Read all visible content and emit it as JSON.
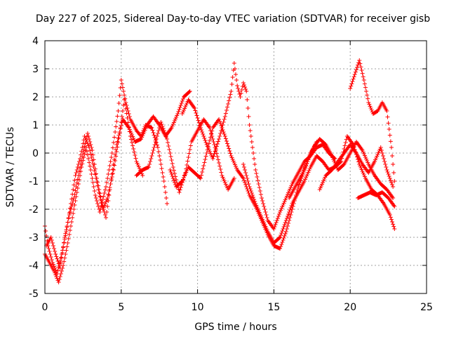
{
  "chart_data": {
    "type": "scatter",
    "title": "Day 227 of 2025, Sidereal Day-to-day VTEC variation (SDTVAR) for receiver gisb",
    "xlabel": "GPS time / hours",
    "ylabel": "SDTVAR / TECUs",
    "xlim": [
      0,
      25
    ],
    "ylim": [
      -5,
      4
    ],
    "xticks": [
      0,
      5,
      10,
      15,
      20,
      25
    ],
    "yticks": [
      -5,
      -4,
      -3,
      -2,
      -1,
      0,
      1,
      2,
      3,
      4
    ],
    "grid": true,
    "marker": "+",
    "color": "#ff0000",
    "series": [
      {
        "name": "s1",
        "x": [
          0.0,
          0.3,
          0.6,
          0.9,
          1.2,
          1.5,
          1.8,
          2.1,
          2.4,
          2.7,
          3.0,
          3.3,
          3.6,
          4.0,
          4.4,
          4.8,
          5.0,
          5.3,
          5.6,
          6.0,
          6.3,
          6.6,
          7.0,
          7.4,
          7.8,
          8.0
        ],
        "y": [
          -3.6,
          -3.9,
          -4.2,
          -4.6,
          -4.0,
          -3.2,
          -2.3,
          -1.4,
          -0.5,
          0.2,
          -0.6,
          -1.5,
          -2.1,
          -1.2,
          0.0,
          1.5,
          2.6,
          1.8,
          1.2,
          0.8,
          0.6,
          1.0,
          0.9,
          0.2,
          -1.0,
          -1.8
        ]
      },
      {
        "name": "s2",
        "x": [
          0.0,
          0.2,
          0.5,
          0.8,
          1.1,
          1.4,
          1.7,
          2.0,
          2.3,
          2.6,
          2.9,
          3.2,
          3.5,
          3.8,
          4.1,
          4.5,
          4.9,
          5.2,
          5.6,
          6.0,
          6.4
        ],
        "y": [
          -2.6,
          -3.3,
          -3.9,
          -4.3,
          -3.6,
          -2.8,
          -1.8,
          -0.8,
          -0.2,
          0.6,
          0.2,
          -0.5,
          -1.3,
          -2.0,
          -1.6,
          -0.6,
          0.7,
          1.9,
          0.6,
          -0.3,
          -0.8
        ]
      },
      {
        "name": "s3",
        "x": [
          0.1,
          0.4,
          0.7,
          1.0,
          1.3,
          1.6,
          1.9,
          2.2,
          2.5,
          2.8,
          3.1,
          3.4,
          3.7,
          4.0,
          4.3,
          4.7,
          5.1,
          5.5,
          5.9,
          6.3,
          6.7,
          7.1,
          7.5,
          7.9,
          8.3,
          8.7,
          9.1,
          9.5
        ],
        "y": [
          -3.3,
          -3.0,
          -3.6,
          -4.1,
          -3.0,
          -2.2,
          -1.6,
          -0.8,
          0.0,
          0.7,
          0.1,
          -0.9,
          -1.7,
          -2.3,
          -1.1,
          0.3,
          1.2,
          0.9,
          0.4,
          0.5,
          1.0,
          1.3,
          1.0,
          0.6,
          0.9,
          1.4,
          2.0,
          2.2
        ]
      },
      {
        "name": "s4",
        "x": [
          6.0,
          6.4,
          6.8,
          7.2,
          7.6,
          8.0,
          8.4,
          8.8,
          9.2,
          9.6,
          10.0,
          10.4,
          10.8,
          11.2,
          11.6,
          12.0,
          12.4
        ],
        "y": [
          -0.8,
          -0.6,
          -0.5,
          0.3,
          1.1,
          0.5,
          -0.5,
          -1.4,
          -0.7,
          0.4,
          0.8,
          1.2,
          0.9,
          0.1,
          -0.8,
          -1.3,
          -0.9
        ]
      },
      {
        "name": "s5",
        "x": [
          8.2,
          8.6,
          9.0,
          9.4,
          9.8,
          10.2,
          10.6,
          11.0,
          11.4,
          11.8,
          12.2,
          12.6,
          13.0,
          13.4,
          13.8,
          14.2,
          14.6,
          15.0,
          15.4,
          15.8,
          16.2,
          16.6,
          17.0,
          17.4,
          17.8
        ],
        "y": [
          -0.6,
          -1.2,
          -1.0,
          -0.5,
          -0.7,
          -0.9,
          0.0,
          0.9,
          1.2,
          0.6,
          -0.1,
          -0.6,
          -0.9,
          -1.5,
          -1.9,
          -2.4,
          -2.9,
          -3.3,
          -3.4,
          -2.8,
          -2.0,
          -1.2,
          -0.6,
          0.0,
          0.4
        ]
      },
      {
        "name": "s6",
        "x": [
          9.0,
          9.4,
          9.8,
          10.2,
          10.6,
          11.0,
          11.4,
          11.8,
          12.2,
          12.4,
          12.6,
          12.8,
          13.0,
          13.2,
          13.4,
          13.8,
          14.2,
          14.6,
          15.0,
          15.4,
          15.8,
          16.2,
          16.6,
          17.0,
          17.4,
          17.8,
          18.2,
          18.6,
          19.0
        ],
        "y": [
          1.4,
          1.9,
          1.6,
          0.9,
          0.3,
          -0.2,
          0.5,
          1.3,
          2.2,
          3.2,
          2.4,
          2.0,
          2.5,
          2.2,
          1.0,
          -0.6,
          -1.6,
          -2.4,
          -2.7,
          -2.1,
          -1.6,
          -1.1,
          -0.7,
          -0.3,
          -0.1,
          0.2,
          0.3,
          0.0,
          -0.2
        ]
      },
      {
        "name": "s7",
        "x": [
          13.0,
          13.4,
          13.8,
          14.2,
          14.6,
          15.0,
          15.4,
          15.8,
          16.2,
          16.6,
          17.0,
          17.4,
          17.8,
          18.2,
          18.6,
          19.0,
          19.4,
          19.8,
          20.2,
          20.6,
          21.0,
          21.4,
          21.8,
          22.2,
          22.6,
          22.9
        ],
        "y": [
          -0.4,
          -1.2,
          -1.8,
          -2.3,
          -2.8,
          -3.2,
          -3.0,
          -2.4,
          -1.8,
          -1.4,
          -1.0,
          -0.5,
          -0.1,
          -0.3,
          -0.6,
          -0.5,
          -0.3,
          0.6,
          0.3,
          -0.4,
          -0.9,
          -1.3,
          -1.5,
          -1.8,
          -2.2,
          -2.7
        ]
      },
      {
        "name": "s8",
        "x": [
          16.0,
          16.4,
          16.8,
          17.2,
          17.6,
          18.0,
          18.4,
          18.8,
          19.2,
          19.6,
          20.0,
          20.4,
          20.8,
          21.2,
          21.6,
          22.0,
          22.4,
          22.8
        ],
        "y": [
          -1.6,
          -1.2,
          -0.8,
          -0.3,
          0.2,
          0.5,
          0.3,
          -0.1,
          -0.6,
          -0.4,
          0.0,
          0.4,
          0.1,
          -0.4,
          -0.8,
          -1.1,
          -1.3,
          -1.6
        ]
      },
      {
        "name": "s9",
        "x": [
          20.0,
          20.3,
          20.6,
          20.9,
          21.2,
          21.5,
          21.8,
          22.1,
          22.4,
          22.7,
          22.9
        ],
        "y": [
          2.3,
          2.8,
          3.3,
          2.6,
          1.8,
          1.4,
          1.5,
          1.8,
          1.5,
          0.2,
          -1.0
        ]
      },
      {
        "name": "s10",
        "x": [
          20.5,
          20.9,
          21.3,
          21.7,
          22.1,
          22.5,
          22.9
        ],
        "y": [
          -1.6,
          -1.5,
          -1.4,
          -1.5,
          -1.4,
          -1.6,
          -1.9
        ]
      },
      {
        "name": "s11",
        "x": [
          18.0,
          18.4,
          18.8,
          19.2,
          19.6,
          20.0,
          20.4,
          20.8,
          21.2,
          21.6,
          22.0,
          22.4,
          22.8
        ],
        "y": [
          -1.3,
          -0.8,
          -0.6,
          -0.3,
          0.0,
          0.3,
          0.0,
          -0.4,
          -0.7,
          -0.3,
          0.2,
          -0.6,
          -1.2
        ]
      }
    ]
  }
}
